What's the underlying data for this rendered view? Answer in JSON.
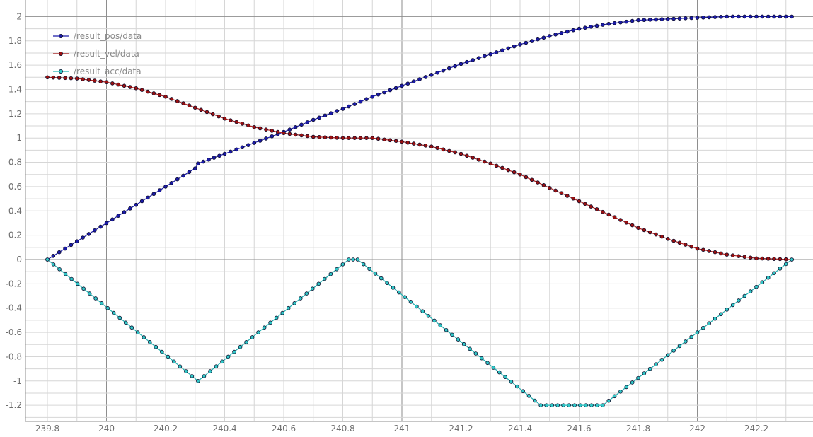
{
  "chart_data": {
    "type": "line",
    "title": "",
    "xlabel": "",
    "ylabel": "",
    "xlim": [
      239.75,
      242.45
    ],
    "ylim": [
      -1.35,
      2.08
    ],
    "grid": true,
    "legend_position": "top-left",
    "x_ticks": [
      "239.8",
      "240",
      "240.2",
      "240.4",
      "240.6",
      "240.8",
      "241",
      "241.2",
      "241.4",
      "241.6",
      "241.8",
      "242",
      "242.2"
    ],
    "y_ticks": [
      "2",
      "1.8",
      "1.6",
      "1.4",
      "1.2",
      "1",
      "0.8",
      "0.6",
      "0.4",
      "0.2",
      "0",
      "-0.2",
      "-0.4",
      "-0.6",
      "-0.8",
      "-1",
      "-1.2"
    ],
    "series": [
      {
        "name": "/result_pos/data",
        "color": "#1a1aa8",
        "marker_fill": "#1a1aa8",
        "x": [
          239.8,
          239.9,
          240.0,
          240.1,
          240.2,
          240.3,
          240.31,
          240.4,
          240.5,
          240.6,
          240.7,
          240.8,
          240.9,
          241.0,
          241.1,
          241.2,
          241.3,
          241.4,
          241.5,
          241.6,
          241.7,
          241.8,
          241.9,
          242.0,
          242.1,
          242.2,
          242.32
        ],
        "y": [
          0.0,
          0.15,
          0.3,
          0.45,
          0.6,
          0.75,
          0.79,
          0.87,
          0.96,
          1.05,
          1.15,
          1.24,
          1.34,
          1.43,
          1.52,
          1.61,
          1.69,
          1.77,
          1.84,
          1.9,
          1.94,
          1.97,
          1.98,
          1.99,
          2.0,
          2.0,
          2.0
        ]
      },
      {
        "name": "/result_vel/data",
        "color": "#b02020",
        "marker_fill": "#9a1010",
        "x": [
          239.8,
          239.9,
          240.0,
          240.1,
          240.2,
          240.3,
          240.4,
          240.5,
          240.6,
          240.7,
          240.8,
          240.9,
          241.0,
          241.1,
          241.2,
          241.3,
          241.4,
          241.5,
          241.6,
          241.7,
          241.8,
          241.9,
          242.0,
          242.1,
          242.2,
          242.32
        ],
        "y": [
          1.5,
          1.49,
          1.46,
          1.41,
          1.34,
          1.25,
          1.16,
          1.09,
          1.04,
          1.01,
          1.0,
          1.0,
          0.97,
          0.93,
          0.87,
          0.79,
          0.7,
          0.59,
          0.48,
          0.37,
          0.26,
          0.17,
          0.09,
          0.04,
          0.01,
          0.0
        ]
      },
      {
        "name": "/result_acc/data",
        "color": "#20b0b0",
        "marker_fill": "#30c8c8",
        "x": [
          239.8,
          240.31,
          240.82,
          240.85,
          241.47,
          241.68,
          242.32
        ],
        "y": [
          0.0,
          -1.0,
          0.0,
          0.0,
          -1.2,
          -1.2,
          0.0
        ]
      }
    ]
  }
}
